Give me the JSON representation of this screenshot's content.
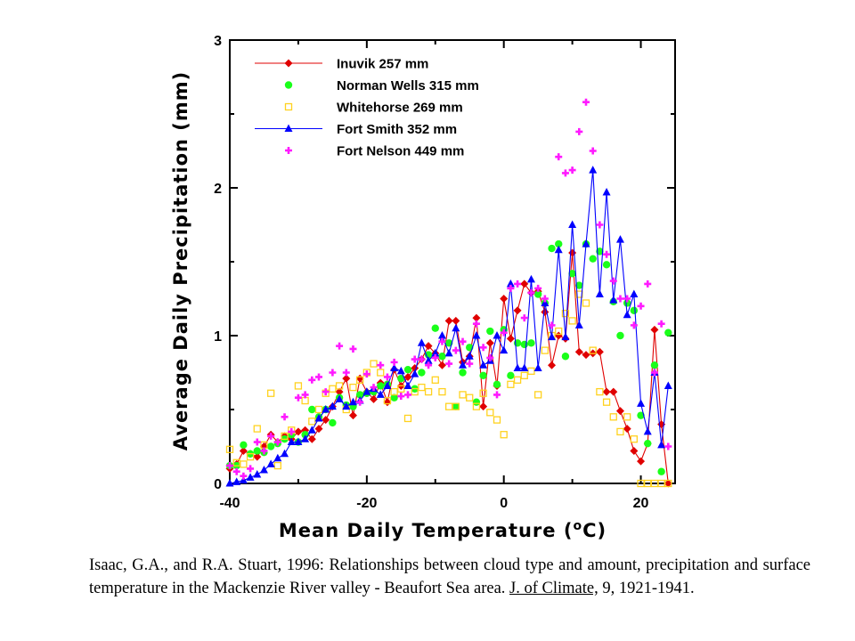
{
  "chart_data": {
    "type": "scatter",
    "xlabel": "Mean Daily Temperature (°C)",
    "ylabel": "Average Daily Precipitation (mm)",
    "xlim": [
      -40,
      25
    ],
    "ylim": [
      0,
      3
    ],
    "xticks": [
      -40,
      -20,
      0,
      20
    ],
    "yticks": [
      0,
      1,
      2,
      3
    ],
    "legend_position": "top-left",
    "grid": false,
    "series": [
      {
        "name": "Inuvik  257 mm",
        "color": "#e00000",
        "marker": "diamond",
        "line": true,
        "x": [
          -40,
          -39,
          -38,
          -37,
          -36,
          -35,
          -34,
          -33,
          -32,
          -31,
          -30,
          -29,
          -28,
          -27,
          -26,
          -25,
          -24,
          -23,
          -22,
          -21,
          -20,
          -19,
          -18,
          -17,
          -16,
          -15,
          -14,
          -13,
          -12,
          -11,
          -10,
          -9,
          -8,
          -7,
          -6,
          -5,
          -4,
          -3,
          -2,
          -1,
          0,
          1,
          2,
          3,
          4,
          5,
          6,
          7,
          8,
          9,
          10,
          11,
          12,
          13,
          14,
          15,
          16,
          17,
          18,
          19,
          20,
          21,
          22,
          23,
          24
        ],
        "y": [
          0.1,
          0.13,
          0.22,
          0.2,
          0.18,
          0.25,
          0.33,
          0.28,
          0.32,
          0.3,
          0.35,
          0.36,
          0.3,
          0.37,
          0.43,
          0.52,
          0.62,
          0.71,
          0.46,
          0.71,
          0.62,
          0.57,
          0.68,
          0.55,
          0.77,
          0.66,
          0.72,
          0.78,
          0.84,
          0.93,
          0.88,
          0.8,
          1.1,
          1.1,
          0.82,
          0.86,
          1.12,
          0.52,
          0.95,
          0.66,
          1.25,
          0.98,
          1.17,
          1.35,
          1.29,
          1.3,
          1.16,
          0.8,
          1.0,
          0.98,
          1.56,
          0.89,
          0.87,
          0.88,
          0.89,
          0.62,
          0.62,
          0.49,
          0.37,
          0.22,
          0.15,
          0.27,
          1.04,
          0.4,
          0.0
        ]
      },
      {
        "name": "Norman Wells  315 mm",
        "color": "#1aff1a",
        "marker": "circle",
        "line": false,
        "x": [
          -40,
          -39,
          -38,
          -37,
          -36,
          -35,
          -34,
          -33,
          -32,
          -31,
          -30,
          -29,
          -28,
          -27,
          -26,
          -25,
          -24,
          -23,
          -22,
          -21,
          -20,
          -19,
          -18,
          -17,
          -16,
          -15,
          -14,
          -13,
          -12,
          -11,
          -10,
          -9,
          -8,
          -7,
          -6,
          -5,
          -4,
          -3,
          -2,
          -1,
          0,
          1,
          2,
          3,
          4,
          5,
          6,
          7,
          8,
          9,
          10,
          11,
          12,
          13,
          14,
          15,
          16,
          17,
          18,
          19,
          20,
          21,
          22,
          23,
          24
        ],
        "y": [
          0.12,
          0.12,
          0.26,
          0.2,
          0.22,
          0.21,
          0.25,
          0.27,
          0.3,
          0.33,
          0.28,
          0.33,
          0.5,
          0.45,
          0.5,
          0.41,
          0.58,
          0.53,
          0.52,
          0.6,
          0.61,
          0.62,
          0.66,
          0.67,
          0.58,
          0.71,
          0.77,
          0.64,
          0.75,
          0.87,
          1.05,
          0.86,
          0.95,
          0.52,
          0.75,
          0.92,
          0.55,
          0.73,
          1.03,
          0.67,
          1.04,
          0.73,
          0.95,
          0.94,
          0.95,
          1.28,
          1.22,
          1.59,
          1.62,
          0.86,
          1.42,
          1.34,
          1.62,
          1.52,
          1.57,
          1.48,
          1.23,
          1.0,
          1.22,
          1.17,
          0.46,
          0.27,
          0.8,
          0.08,
          1.02
        ]
      },
      {
        "name": "Whitehorse  269 mm",
        "color": "#ffd21f",
        "marker": "square-open",
        "line": false,
        "x": [
          -40,
          -39,
          -38,
          -37,
          -36,
          -35,
          -34,
          -33,
          -32,
          -31,
          -30,
          -29,
          -28,
          -27,
          -26,
          -25,
          -24,
          -23,
          -22,
          -21,
          -20,
          -19,
          -18,
          -17,
          -16,
          -15,
          -14,
          -13,
          -12,
          -11,
          -10,
          -9,
          -8,
          -7,
          -6,
          -5,
          -4,
          -3,
          -2,
          -1,
          0,
          1,
          2,
          3,
          4,
          5,
          6,
          7,
          8,
          9,
          10,
          11,
          12,
          13,
          14,
          15,
          16,
          17,
          18,
          19,
          20,
          21,
          22,
          23,
          24
        ],
        "y": [
          0.23,
          0.14,
          0.13,
          0.18,
          0.37,
          0.26,
          0.61,
          0.12,
          0.32,
          0.36,
          0.66,
          0.56,
          0.42,
          0.5,
          0.61,
          0.64,
          0.66,
          0.5,
          0.65,
          0.7,
          0.75,
          0.81,
          0.75,
          0.56,
          0.62,
          0.64,
          0.44,
          0.62,
          0.65,
          0.62,
          0.7,
          0.62,
          0.52,
          0.52,
          0.6,
          0.58,
          0.52,
          0.61,
          0.48,
          0.43,
          0.33,
          0.67,
          0.7,
          0.73,
          0.76,
          0.6,
          0.9,
          1.0,
          1.03,
          1.15,
          1.1,
          1.28,
          1.22,
          0.9,
          0.62,
          0.55,
          0.45,
          0.35,
          0.45,
          0.3,
          0.0,
          0.0,
          0.0,
          0.0,
          0.0
        ]
      },
      {
        "name": "Fort Smith  352 mm",
        "color": "#0000ff",
        "marker": "triangle",
        "line": true,
        "x": [
          -40,
          -39,
          -38,
          -37,
          -36,
          -35,
          -34,
          -33,
          -32,
          -31,
          -30,
          -29,
          -28,
          -27,
          -26,
          -25,
          -24,
          -23,
          -22,
          -21,
          -20,
          -19,
          -18,
          -17,
          -16,
          -15,
          -14,
          -13,
          -12,
          -11,
          -10,
          -9,
          -8,
          -7,
          -6,
          -5,
          -4,
          -3,
          -2,
          -1,
          0,
          1,
          2,
          3,
          4,
          5,
          6,
          7,
          8,
          9,
          10,
          11,
          12,
          13,
          14,
          15,
          16,
          17,
          18,
          19,
          20,
          21,
          22,
          23,
          24
        ],
        "y": [
          0.0,
          0.01,
          0.02,
          0.04,
          0.06,
          0.09,
          0.13,
          0.17,
          0.2,
          0.28,
          0.28,
          0.3,
          0.36,
          0.44,
          0.5,
          0.52,
          0.57,
          0.52,
          0.55,
          0.56,
          0.62,
          0.64,
          0.6,
          0.66,
          0.78,
          0.76,
          0.66,
          0.74,
          0.95,
          0.83,
          0.88,
          1.0,
          0.88,
          1.05,
          0.8,
          0.86,
          1.0,
          0.8,
          0.83,
          1.0,
          0.9,
          1.35,
          0.78,
          0.78,
          1.38,
          0.78,
          1.22,
          0.99,
          1.58,
          0.99,
          1.75,
          1.07,
          1.62,
          2.12,
          1.28,
          1.97,
          1.24,
          1.65,
          1.14,
          1.28,
          0.54,
          0.35,
          0.75,
          0.26,
          0.66
        ]
      },
      {
        "name": "Fort Nelson  449 mm",
        "color": "#ff1aff",
        "marker": "plus",
        "line": false,
        "x": [
          -40,
          -39,
          -38,
          -37,
          -36,
          -35,
          -34,
          -33,
          -32,
          -31,
          -30,
          -29,
          -28,
          -27,
          -26,
          -25,
          -24,
          -23,
          -22,
          -21,
          -20,
          -19,
          -18,
          -17,
          -16,
          -15,
          -14,
          -13,
          -12,
          -11,
          -10,
          -9,
          -8,
          -7,
          -6,
          -5,
          -4,
          -3,
          -2,
          -1,
          0,
          1,
          2,
          3,
          4,
          5,
          6,
          7,
          8,
          9,
          10,
          11,
          12,
          13,
          14,
          15,
          16,
          17,
          18,
          19,
          20,
          21,
          22,
          23,
          24
        ],
        "y": [
          0.12,
          0.08,
          0.05,
          0.1,
          0.28,
          0.22,
          0.32,
          0.28,
          0.45,
          0.35,
          0.58,
          0.6,
          0.7,
          0.72,
          0.62,
          0.75,
          0.93,
          0.75,
          0.91,
          0.55,
          0.74,
          0.65,
          0.8,
          0.72,
          0.82,
          0.59,
          0.6,
          0.84,
          0.84,
          0.8,
          0.85,
          0.96,
          0.81,
          0.9,
          0.96,
          0.81,
          1.08,
          0.92,
          0.85,
          0.6,
          1.02,
          1.32,
          1.35,
          1.12,
          1.29,
          1.32,
          1.25,
          1.07,
          2.21,
          2.1,
          2.12,
          2.38,
          2.58,
          2.25,
          1.75,
          1.55,
          1.37,
          1.25,
          1.25,
          1.07,
          1.2,
          1.35,
          0.75,
          1.08,
          0.25
        ]
      }
    ]
  },
  "citation": {
    "text": "Isaac, G.A., and R.A. Stuart, 1996: Relationships between cloud type and amount, precipitation and surface temperature in the Mackenzie River valley - Beaufort Sea area. ",
    "journal": "J. of Climate,",
    "volume_pages": " 9, 1921-1941."
  }
}
